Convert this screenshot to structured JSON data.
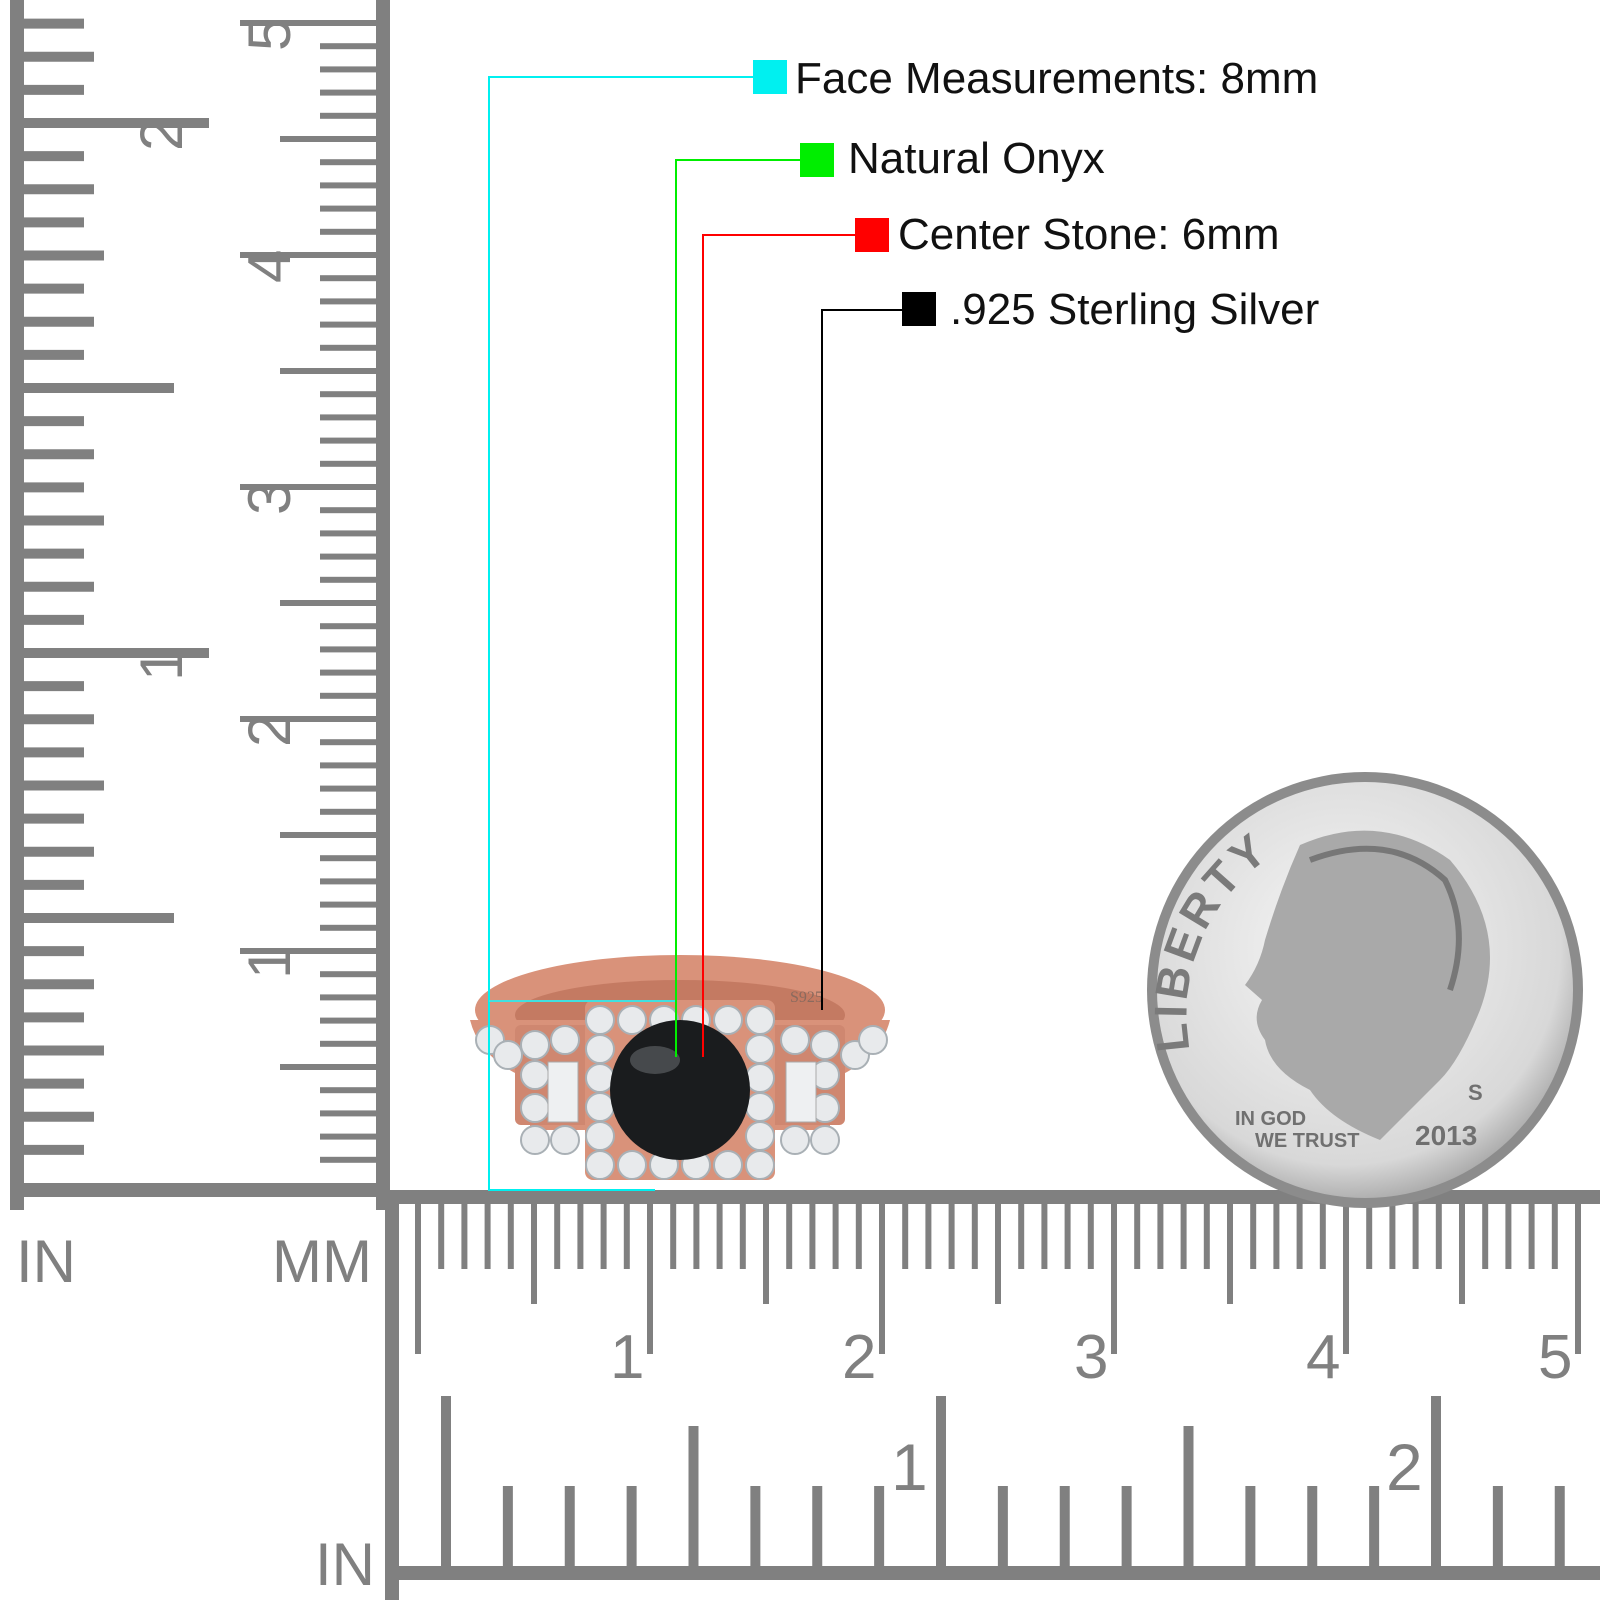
{
  "callouts": [
    {
      "label": "Face Measurements: 8mm",
      "color": "#00f0f0"
    },
    {
      "label": "Natural Onyx",
      "color": "#00ee00"
    },
    {
      "label": "Center Stone: 6mm",
      "color": "#ff0000"
    },
    {
      "label": ".925 Sterling Silver",
      "color": "#000000"
    }
  ],
  "ruler": {
    "color": "#808080",
    "unit_in_left": "IN",
    "unit_mm": "MM",
    "unit_in_bottom": "IN",
    "vertical_mm_labels": [
      "1",
      "2",
      "3",
      "4",
      "5"
    ],
    "vertical_in_labels": [
      "1",
      "2"
    ],
    "bottom_mm_labels": [
      "1",
      "2",
      "3",
      "4",
      "5"
    ],
    "bottom_in_labels": [
      "1",
      "2"
    ]
  },
  "ring": {
    "metal_color": "#d9927a",
    "stone_color": "#1a1c1e",
    "stamp": "S925"
  },
  "coin": {
    "legend": "LIBERTY",
    "motto_1": "IN GOD",
    "motto_2": "WE TRUST",
    "year": "2013",
    "mint_mark": "S"
  }
}
